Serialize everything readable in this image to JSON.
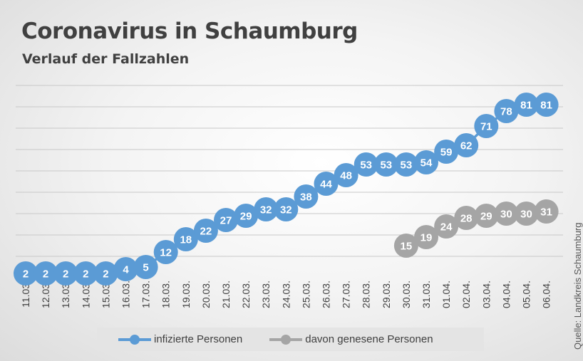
{
  "title": "Coronavirus in Schaumburg",
  "subtitle": "Verlauf der Fallzahlen",
  "source": "Quelle: Landkreis Schaumburg",
  "colors": {
    "infected": "#5b9bd5",
    "recovered": "#a5a5a5",
    "grid": "#c8c8c8",
    "label": "#ffffff"
  },
  "chart_data": {
    "type": "line",
    "title": "Coronavirus in Schaumburg",
    "subtitle": "Verlauf der Fallzahlen",
    "xlabel": "",
    "ylabel": "",
    "grid": true,
    "legend_position": "bottom",
    "ylim": [
      0,
      90
    ],
    "categories": [
      "11.03.",
      "12.03.",
      "13.03.",
      "14.03.",
      "15.03.",
      "16.03.",
      "17.03.",
      "18.03.",
      "19.03.",
      "20.03.",
      "21.03.",
      "22.03.",
      "23.03.",
      "24.03.",
      "25.03.",
      "26.03.",
      "27.03.",
      "28.03.",
      "29.03.",
      "30.03.",
      "31.03.",
      "01.04.",
      "02.04.",
      "03.04.",
      "04.04.",
      "05.04.",
      "06.04."
    ],
    "series": [
      {
        "name": "infizierte Personen",
        "color": "#5b9bd5",
        "values": [
          2,
          2,
          2,
          2,
          2,
          4,
          5,
          12,
          18,
          22,
          27,
          29,
          32,
          32,
          38,
          44,
          48,
          53,
          53,
          53,
          54,
          59,
          62,
          71,
          78,
          81,
          81
        ]
      },
      {
        "name": "davon genesene Personen",
        "color": "#a5a5a5",
        "values": [
          null,
          null,
          null,
          null,
          null,
          null,
          null,
          null,
          null,
          null,
          null,
          null,
          null,
          null,
          null,
          null,
          null,
          null,
          null,
          15,
          19,
          24,
          28,
          29,
          30,
          30,
          31
        ]
      }
    ]
  }
}
